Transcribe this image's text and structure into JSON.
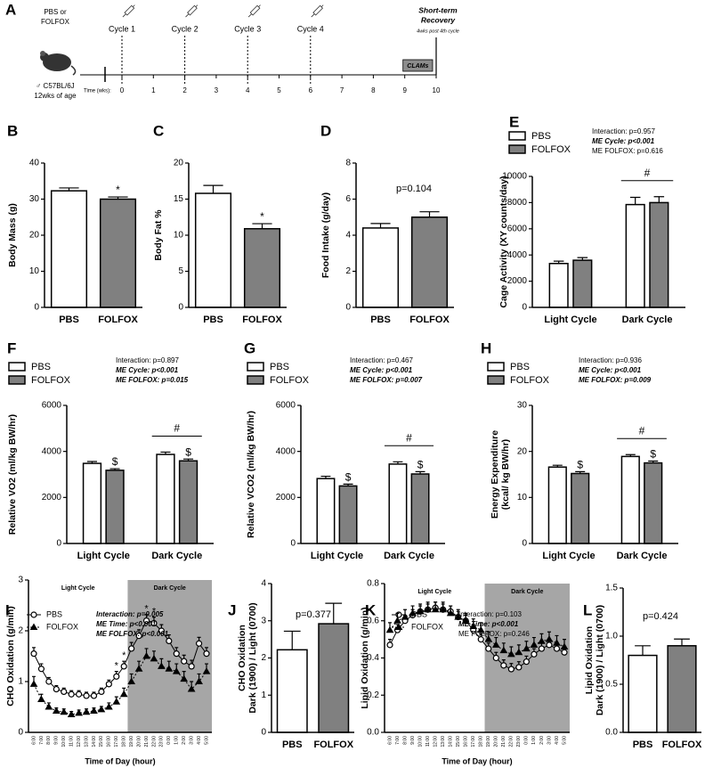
{
  "timeline": {
    "panel_label": "A",
    "treatment": [
      "PBS or",
      "FOLFOX"
    ],
    "mouse": [
      "♂ C57BL/6J",
      "12wks of age"
    ],
    "axis_label": "Time (wks):",
    "ticks": [
      0,
      1,
      2,
      3,
      4,
      5,
      6,
      7,
      8,
      9,
      10
    ],
    "cycles": [
      {
        "label": "Cycle 1",
        "week": 0
      },
      {
        "label": "Cycle 2",
        "week": 2
      },
      {
        "label": "Cycle 3",
        "week": 4
      },
      {
        "label": "Cycle 4",
        "week": 6
      }
    ],
    "clams": {
      "label": "CLAMs",
      "start": 9,
      "end": 10
    },
    "recovery": {
      "lines": [
        "Short-term",
        "Recovery"
      ],
      "note": "4wks post 4th cycle",
      "week": 10
    }
  },
  "chart_data": [
    {
      "type": "bar",
      "panel_label": "B",
      "ylabel": [
        "Body Mass (g)"
      ],
      "categories": [
        "PBS",
        "FOLFOX"
      ],
      "values": [
        32.3,
        30.0
      ],
      "errors": [
        0.8,
        0.6
      ],
      "colors": [
        "#ffffff",
        "#808080"
      ],
      "significance": [
        null,
        "*"
      ],
      "ylim": [
        0,
        40
      ],
      "yticks": [
        0,
        10,
        20,
        30,
        40
      ]
    },
    {
      "type": "bar",
      "panel_label": "C",
      "ylabel": [
        "Body Fat %"
      ],
      "categories": [
        "PBS",
        "FOLFOX"
      ],
      "values": [
        15.8,
        10.9
      ],
      "errors": [
        1.1,
        0.7
      ],
      "colors": [
        "#ffffff",
        "#808080"
      ],
      "significance": [
        null,
        "*"
      ],
      "ylim": [
        0,
        20
      ],
      "yticks": [
        0,
        5,
        10,
        15,
        20
      ]
    },
    {
      "type": "bar",
      "panel_label": "D",
      "ylabel": [
        "Food Intake (g/day)"
      ],
      "annotation": "p=0.104",
      "categories": [
        "PBS",
        "FOLFOX"
      ],
      "values": [
        4.4,
        5.0
      ],
      "errors": [
        0.25,
        0.3
      ],
      "colors": [
        "#ffffff",
        "#808080"
      ],
      "ylim": [
        0,
        8
      ],
      "yticks": [
        0,
        2,
        4,
        6,
        8
      ]
    },
    {
      "type": "bar",
      "panel_label": "E",
      "ylabel": [
        "Cage Activity (XY counts/day)"
      ],
      "categories": [
        "Light Cycle",
        "Dark Cycle"
      ],
      "series": [
        {
          "name": "PBS",
          "color": "#ffffff",
          "values": [
            3350,
            7850
          ],
          "errors": [
            180,
            550
          ]
        },
        {
          "name": "FOLFOX",
          "color": "#808080",
          "values": [
            3600,
            8000
          ],
          "errors": [
            200,
            450
          ]
        }
      ],
      "bracket_labels": [
        null,
        "#"
      ],
      "stats": [
        {
          "text": "Interaction: p=0.957",
          "emphasis": false
        },
        {
          "text": "ME Cycle: p<0.001",
          "emphasis": true
        },
        {
          "text": "ME FOLFOX: p=0.616",
          "emphasis": false
        }
      ],
      "ylim": [
        0,
        10000
      ],
      "yticks": [
        0,
        2000,
        4000,
        6000,
        8000,
        10000
      ]
    },
    {
      "type": "bar",
      "panel_label": "F",
      "ylabel": [
        "Relative VO2 (ml/kg BW/hr)"
      ],
      "categories": [
        "Light Cycle",
        "Dark Cycle"
      ],
      "series": [
        {
          "name": "PBS",
          "color": "#ffffff",
          "values": [
            3480,
            3870
          ],
          "errors": [
            80,
            100
          ]
        },
        {
          "name": "FOLFOX",
          "color": "#808080",
          "values": [
            3180,
            3590
          ],
          "errors": [
            70,
            80
          ],
          "significance": [
            "$",
            "$"
          ]
        }
      ],
      "bracket_labels": [
        null,
        "#"
      ],
      "stats": [
        {
          "text": "Interaction: p=0.897",
          "emphasis": false
        },
        {
          "text": "ME Cycle: p<0.001",
          "emphasis": true
        },
        {
          "text": "ME FOLFOX: p=0.015",
          "emphasis": true
        }
      ],
      "ylim": [
        0,
        6000
      ],
      "yticks": [
        0,
        2000,
        4000,
        6000
      ]
    },
    {
      "type": "bar",
      "panel_label": "G",
      "ylabel": [
        "Relative VCO2 (ml/kg BW/hr)"
      ],
      "categories": [
        "Light Cycle",
        "Dark Cycle"
      ],
      "series": [
        {
          "name": "PBS",
          "color": "#ffffff",
          "values": [
            2820,
            3450
          ],
          "errors": [
            100,
            100
          ]
        },
        {
          "name": "FOLFOX",
          "color": "#808080",
          "values": [
            2500,
            3020
          ],
          "errors": [
            80,
            100
          ],
          "significance": [
            "$",
            "$"
          ]
        }
      ],
      "bracket_labels": [
        null,
        "#"
      ],
      "stats": [
        {
          "text": "Interaction: p=0.467",
          "emphasis": false
        },
        {
          "text": "ME Cycle: p<0.001",
          "emphasis": true
        },
        {
          "text": "ME FOLFOX: p=0.007",
          "emphasis": true
        }
      ],
      "ylim": [
        0,
        6000
      ],
      "yticks": [
        0,
        2000,
        4000,
        6000
      ]
    },
    {
      "type": "bar",
      "panel_label": "H",
      "ylabel": [
        "Energy Expenditure",
        "(kcal/ kg BW/hr)"
      ],
      "categories": [
        "Light Cycle",
        "Dark Cycle"
      ],
      "series": [
        {
          "name": "PBS",
          "color": "#ffffff",
          "values": [
            16.6,
            18.9
          ],
          "errors": [
            0.4,
            0.4
          ]
        },
        {
          "name": "FOLFOX",
          "color": "#808080",
          "values": [
            15.2,
            17.5
          ],
          "errors": [
            0.4,
            0.4
          ],
          "significance": [
            "$",
            "$"
          ]
        }
      ],
      "bracket_labels": [
        null,
        "#"
      ],
      "stats": [
        {
          "text": "Interaction: p=0.936",
          "emphasis": false
        },
        {
          "text": "ME Cycle: p<0.001",
          "emphasis": true
        },
        {
          "text": "ME FOLFOX: p=0.009",
          "emphasis": true
        }
      ],
      "ylim": [
        0,
        30
      ],
      "yticks": [
        0,
        10,
        20,
        30
      ]
    },
    {
      "type": "line",
      "panel_label": "I",
      "ylabel": [
        "CHO Oxidation (g/min)"
      ],
      "xlabel": "Time of Day (hour)",
      "categories": [
        "6:00",
        "7:00",
        "8:00",
        "9:00",
        "10:00",
        "11:00",
        "12:00",
        "13:00",
        "14:00",
        "15:00",
        "16:00",
        "17:00",
        "18:00",
        "19:00",
        "20:00",
        "21:00",
        "22:00",
        "23:00",
        "0:00",
        "1:00",
        "2:00",
        "3:00",
        "4:00",
        "5:00"
      ],
      "regions": [
        {
          "label": "Light Cycle",
          "start": 0,
          "end": 13,
          "shaded": false
        },
        {
          "label": "Dark Cycle",
          "start": 13,
          "end": 23,
          "shaded": true
        }
      ],
      "series": [
        {
          "name": "PBS",
          "color": "#000000",
          "marker": "circle-open",
          "dashed": false,
          "values": [
            1.55,
            1.25,
            1.0,
            0.85,
            0.8,
            0.75,
            0.75,
            0.72,
            0.72,
            0.8,
            0.95,
            1.1,
            1.3,
            1.65,
            1.9,
            2.2,
            2.15,
            2.0,
            1.8,
            1.55,
            1.4,
            1.3,
            1.75,
            1.55
          ],
          "errors": [
            0.12,
            0.1,
            0.08,
            0.07,
            0.07,
            0.07,
            0.07,
            0.07,
            0.07,
            0.07,
            0.08,
            0.1,
            0.1,
            0.12,
            0.12,
            0.12,
            0.12,
            0.12,
            0.12,
            0.12,
            0.12,
            0.12,
            0.12,
            0.12
          ],
          "significance": [
            null,
            null,
            null,
            null,
            null,
            null,
            null,
            null,
            null,
            null,
            null,
            "*",
            "*",
            null,
            null,
            "*",
            "*",
            null,
            null,
            null,
            null,
            null,
            null,
            null
          ]
        },
        {
          "name": "FOLFOX",
          "color": "#000000",
          "marker": "triangle",
          "dashed": true,
          "values": [
            0.95,
            0.65,
            0.5,
            0.42,
            0.4,
            0.35,
            0.38,
            0.4,
            0.42,
            0.45,
            0.5,
            0.6,
            0.75,
            1.0,
            1.25,
            1.5,
            1.45,
            1.3,
            1.25,
            1.2,
            1.05,
            0.85,
            1.0,
            1.2
          ],
          "errors": [
            0.15,
            0.1,
            0.08,
            0.06,
            0.06,
            0.06,
            0.06,
            0.06,
            0.06,
            0.06,
            0.08,
            0.1,
            0.12,
            0.15,
            0.15,
            0.15,
            0.15,
            0.15,
            0.15,
            0.15,
            0.15,
            0.15,
            0.15,
            0.15
          ]
        }
      ],
      "stats": [
        {
          "text": "Interaction: p=0.005",
          "emphasis": true
        },
        {
          "text": "ME Time: p<0.001",
          "emphasis": true
        },
        {
          "text": "ME FOLFOX: p<0.001",
          "emphasis": true
        }
      ],
      "ylim": [
        0,
        3
      ],
      "yticks": [
        0,
        1,
        2,
        3
      ]
    },
    {
      "type": "bar",
      "panel_label": "J",
      "ylabel": [
        "CHO Oxidation",
        "Dark (1900) / Light (0700)"
      ],
      "annotation": "p=0.377",
      "categories": [
        "PBS",
        "FOLFOX"
      ],
      "values": [
        2.22,
        2.92
      ],
      "errors": [
        0.5,
        0.55
      ],
      "colors": [
        "#ffffff",
        "#808080"
      ],
      "ylim": [
        0,
        4
      ],
      "yticks": [
        0,
        1,
        2,
        3,
        4
      ]
    },
    {
      "type": "line",
      "panel_label": "K",
      "ylabel": [
        "Lipid Oxidation (g/min)"
      ],
      "xlabel": "Time of Day (hour)",
      "categories": [
        "6:00",
        "7:00",
        "8:00",
        "9:00",
        "10:00",
        "11:00",
        "12:00",
        "13:00",
        "14:00",
        "15:00",
        "16:00",
        "17:00",
        "18:00",
        "19:00",
        "20:00",
        "21:00",
        "22:00",
        "23:00",
        "0:00",
        "1:00",
        "2:00",
        "3:00",
        "4:00",
        "5:00"
      ],
      "regions": [
        {
          "label": "Light Cycle",
          "start": 0,
          "end": 13,
          "shaded": false
        },
        {
          "label": "Dark Cycle",
          "start": 13,
          "end": 23,
          "shaded": true
        }
      ],
      "series": [
        {
          "name": "PBS",
          "color": "#000000",
          "marker": "circle-open",
          "dashed": false,
          "values": [
            0.47,
            0.55,
            0.6,
            0.63,
            0.65,
            0.66,
            0.67,
            0.66,
            0.65,
            0.62,
            0.6,
            0.55,
            0.5,
            0.45,
            0.4,
            0.36,
            0.34,
            0.35,
            0.38,
            0.42,
            0.45,
            0.47,
            0.45,
            0.43
          ],
          "errors": [
            0.03,
            0.03,
            0.03,
            0.03,
            0.03,
            0.03,
            0.03,
            0.03,
            0.03,
            0.03,
            0.03,
            0.03,
            0.03,
            0.03,
            0.03,
            0.03,
            0.03,
            0.03,
            0.03,
            0.03,
            0.03,
            0.03,
            0.03,
            0.03
          ]
        },
        {
          "name": "FOLFOX",
          "color": "#000000",
          "marker": "triangle",
          "dashed": true,
          "values": [
            0.55,
            0.6,
            0.62,
            0.64,
            0.65,
            0.66,
            0.66,
            0.66,
            0.64,
            0.62,
            0.6,
            0.57,
            0.55,
            0.5,
            0.47,
            0.44,
            0.42,
            0.43,
            0.45,
            0.47,
            0.49,
            0.5,
            0.48,
            0.46
          ],
          "errors": [
            0.04,
            0.04,
            0.04,
            0.04,
            0.04,
            0.04,
            0.04,
            0.04,
            0.04,
            0.04,
            0.04,
            0.04,
            0.04,
            0.04,
            0.04,
            0.04,
            0.04,
            0.04,
            0.04,
            0.04,
            0.04,
            0.04,
            0.04,
            0.04
          ]
        }
      ],
      "stats": [
        {
          "text": "Interaction: p=0.103",
          "emphasis": false
        },
        {
          "text": "ME Time: p<0.001",
          "emphasis": true
        },
        {
          "text": "ME FOLFOX: p=0.246",
          "emphasis": false
        }
      ],
      "ylim": [
        0,
        0.8
      ],
      "yticks": [
        {
          "value": 0,
          "label": "0.0"
        },
        0.2,
        0.4,
        0.6,
        0.8
      ]
    },
    {
      "type": "bar",
      "panel_label": "L",
      "ylabel": [
        "Lipid Oxidation",
        "Dark (1900) / Light (0700)"
      ],
      "annotation": "p=0.424",
      "categories": [
        "PBS",
        "FOLFOX"
      ],
      "values": [
        0.8,
        0.9
      ],
      "errors": [
        0.1,
        0.07
      ],
      "colors": [
        "#ffffff",
        "#808080"
      ],
      "ylim": [
        0,
        1.5
      ],
      "yticks": [
        {
          "value": 0,
          "label": "0.0"
        },
        0.5,
        {
          "value": 1,
          "label": "1.0"
        },
        1.5
      ]
    }
  ]
}
